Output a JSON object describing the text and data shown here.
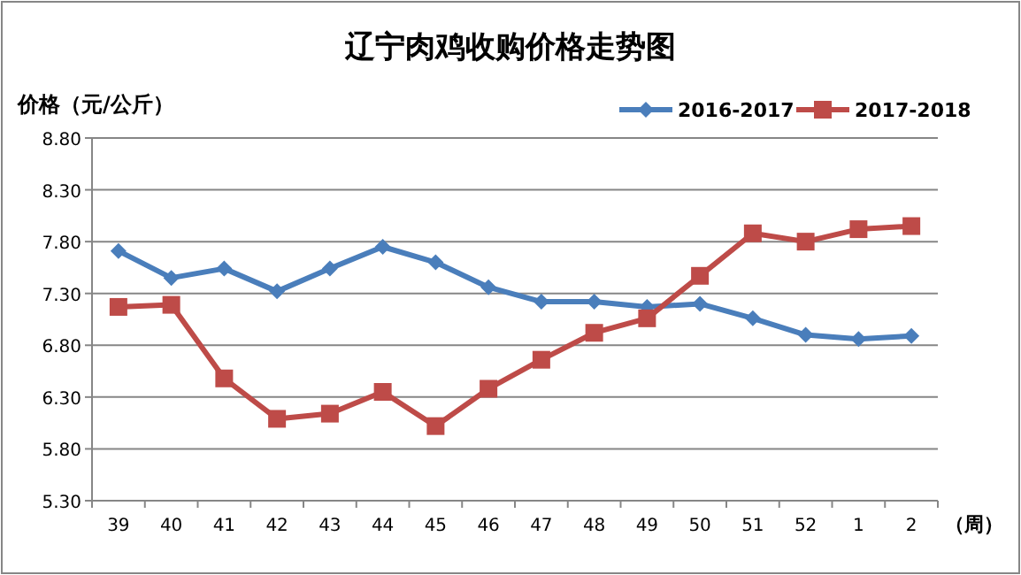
{
  "chart_data": {
    "type": "line",
    "title": "辽宁肉鸡收购价格走势图",
    "ylabel": "价格（元/公斤）",
    "xlabel": "（周）",
    "categories": [
      "39",
      "40",
      "41",
      "42",
      "43",
      "44",
      "45",
      "46",
      "47",
      "48",
      "49",
      "50",
      "51",
      "52",
      "1",
      "2"
    ],
    "series": [
      {
        "name": "2016-2017",
        "color": "#4a7ebb",
        "marker": "diamond",
        "values": [
          7.71,
          7.45,
          7.54,
          7.32,
          7.54,
          7.75,
          7.6,
          7.36,
          7.22,
          7.22,
          7.17,
          7.2,
          7.06,
          6.9,
          6.86,
          6.89
        ]
      },
      {
        "name": "2017-2018",
        "color": "#be4b48",
        "marker": "square",
        "values": [
          7.17,
          7.19,
          6.48,
          6.09,
          6.14,
          6.35,
          6.02,
          6.38,
          6.66,
          6.92,
          7.06,
          7.47,
          7.88,
          7.8,
          7.92,
          7.95
        ]
      }
    ],
    "ylim": [
      5.3,
      8.8
    ],
    "yticks": [
      {
        "value": 5.3,
        "label": "5.30"
      },
      {
        "value": 5.8,
        "label": "5.80"
      },
      {
        "value": 6.3,
        "label": "6.30"
      },
      {
        "value": 6.8,
        "label": "6.80"
      },
      {
        "value": 7.3,
        "label": "7.30"
      },
      {
        "value": 7.8,
        "label": "7.80"
      },
      {
        "value": 8.3,
        "label": "8.30"
      },
      {
        "value": 8.8,
        "label": "8.80"
      }
    ],
    "grid": "y",
    "legend": "top right",
    "line_style": "solid"
  }
}
